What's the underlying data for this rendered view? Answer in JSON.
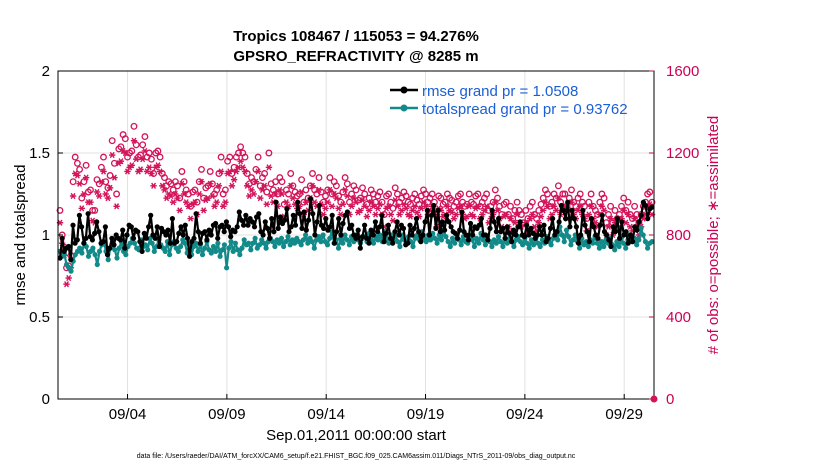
{
  "chart_data": {
    "type": "line",
    "title": "Tropics 108467 / 115053 = 94.276%",
    "subtitle": "GPSRO_REFRACTIVITY @ 8285 m",
    "xlabel": "Sep.01,2011 00:00:00 start",
    "ylabel": "rmse and totalspread",
    "y2label": "# of obs: o=possible; ∗=assimilated",
    "ylim": [
      0,
      2
    ],
    "y2lim": [
      0,
      1600
    ],
    "xlim_days": [
      0.5,
      30.5
    ],
    "yticks": [
      "0",
      "0.5",
      "1",
      "1.5",
      "2"
    ],
    "y2ticks": [
      "0",
      "400",
      "800",
      "1200",
      "1600"
    ],
    "xticks": [
      {
        "day": 4,
        "label": "09/04"
      },
      {
        "day": 9,
        "label": "09/09"
      },
      {
        "day": 14,
        "label": "09/14"
      },
      {
        "day": 19,
        "label": "09/19"
      },
      {
        "day": 24,
        "label": "09/24"
      },
      {
        "day": 29,
        "label": "09/29"
      }
    ],
    "grid": true,
    "legend_position": "top-right",
    "footnote": "data file: /Users/raeder/DAI/ATM_forcXX/CAM6_setup/f.e21.FHIST_BGC.f09_025.CAM6assim.011/Diags_NTrS_2011-09/obs_diag_output.nc",
    "series": [
      {
        "name": "rmse grand pr = 1.0508",
        "color": "#000000",
        "values": [
          0.86,
          0.98,
          0.9,
          0.92,
          0.93,
          0.85,
          1.06,
          0.95,
          0.97,
          1.12,
          1.05,
          0.95,
          0.98,
          1.13,
          0.99,
          0.97,
          1.01,
          1.08,
          1.02,
          0.95,
          0.96,
          1.05,
          0.88,
          0.92,
          0.98,
          0.94,
          1.0,
          0.98,
          0.97,
          1.03,
          0.92,
          1.0,
          1.06,
          1.05,
          0.98,
          1.03,
          1.02,
          0.96,
          0.9,
          1.01,
          0.98,
          1.05,
          1.12,
          1.0,
          0.98,
          1.05,
          0.93,
          1.04,
          1.02,
          1.0,
          1.03,
          0.95,
          1.1,
          0.95,
          0.96,
          1.01,
          1.05,
          1.0,
          1.06,
          0.98,
          0.87,
          0.96,
          0.98,
          1.13,
          1.02,
          0.95,
          1.01,
          1.02,
          0.97,
          1.03,
          1.0,
          1.06,
          1.07,
          0.98,
          1.05,
          1.06,
          1.02,
          1.08,
          1.05,
          0.99,
          1.03,
          1.02,
          1.05,
          1.14,
          1.09,
          1.06,
          1.12,
          1.06,
          1.1,
          1.08,
          1.05,
          1.11,
          1.13,
          1.02,
          1.0,
          1.08,
          1.04,
          0.98,
          1.1,
          1.02,
          1.2,
          1.04,
          1.11,
          1.07,
          1.09,
          1.16,
          1.02,
          1.05,
          1.12,
          1.06,
          1.2,
          1.13,
          1.04,
          1.14,
          1.03,
          1.09,
          1.22,
          1.13,
          1.0,
          1.08,
          1.18,
          1.06,
          1.04,
          1.1,
          1.03,
          1.05,
          1.12,
          0.95,
          1.02,
          1.1,
          1.0,
          1.07,
          1.12,
          1.14,
          1.04,
          1.06,
          1.0,
          0.98,
          1.03,
          0.92,
          0.99,
          1.06,
          0.98,
          0.95,
          1.03,
          1.0,
          1.08,
          1.02,
          1.05,
          1.12,
          0.96,
          1.01,
          1.06,
          0.98,
          0.95,
          1.02,
          1.08,
          1.0,
          1.06,
          1.04,
          0.94,
          0.95,
          1.06,
          1.0,
          1.04,
          1.1,
          1.02,
          0.96,
          1.0,
          1.08,
          1.15,
          1.0,
          1.12,
          1.18,
          1.04,
          1.15,
          1.02,
          1.08,
          1.03,
          1.12,
          1.08,
          1.05,
          1.02,
          1.01,
          0.98,
          1.03,
          1.14,
          1.02,
          1.0,
          0.97,
          1.07,
          1.0,
          1.05,
          1.04,
          1.06,
          1.1,
          1.0,
          1.0,
          0.97,
          1.04,
          1.15,
          1.08,
          1.02,
          1.1,
          1.02,
          1.04,
          0.98,
          1.05,
          1.01,
          0.96,
          1.03,
          1.0,
          1.05,
          1.08,
          1.0,
          0.99,
          1.06,
          1.0,
          1.04,
          1.01,
          0.98,
          1.0,
          1.05,
          1.0,
          1.06,
          0.96,
          0.98,
          1.04,
          1.1,
          1.0,
          1.02,
          1.08,
          1.18,
          1.15,
          1.1,
          1.2,
          1.05,
          1.15,
          1.1,
          1.05,
          0.95,
          1.0,
          1.15,
          1.06,
          1.02,
          0.96,
          1.1,
          1.05,
          1.0,
          0.98,
          1.06,
          1.12,
          1.02,
          1.0,
          0.97,
          0.93,
          1.05,
          1.02,
          1.1,
          0.98,
          1.08,
          1.0,
          1.02,
          0.95,
          1.0,
          0.96,
          1.05,
          1.03,
          1.08,
          1.12,
          1.2,
          1.18,
          1.1,
          1.16,
          1.17
        ]
      },
      {
        "name": "totalspread grand pr = 0.93762",
        "color": "#138a8a",
        "values": [
          0.9,
          0.87,
          0.88,
          0.82,
          0.8,
          0.78,
          0.84,
          0.88,
          0.9,
          0.92,
          0.89,
          0.95,
          0.93,
          0.87,
          0.9,
          0.92,
          0.88,
          0.82,
          0.9,
          0.94,
          0.96,
          0.9,
          0.85,
          0.92,
          0.95,
          0.91,
          0.86,
          0.92,
          0.96,
          0.9,
          0.88,
          0.93,
          0.95,
          0.98,
          0.95,
          0.92,
          0.91,
          0.97,
          0.93,
          0.94,
          0.91,
          0.98,
          0.95,
          0.9,
          0.93,
          0.97,
          0.94,
          0.92,
          0.9,
          0.96,
          0.88,
          0.94,
          0.96,
          0.92,
          0.9,
          0.93,
          0.97,
          0.95,
          0.89,
          0.94,
          0.88,
          0.93,
          0.95,
          0.9,
          0.94,
          0.88,
          0.92,
          0.96,
          0.91,
          0.89,
          0.93,
          0.9,
          0.95,
          0.87,
          0.91,
          0.94,
          0.8,
          0.92,
          0.96,
          0.9,
          0.95,
          0.91,
          0.88,
          0.92,
          0.97,
          0.94,
          0.95,
          0.91,
          0.95,
          0.98,
          0.92,
          0.94,
          0.97,
          0.95,
          0.92,
          0.96,
          0.98,
          0.96,
          0.93,
          0.97,
          0.95,
          0.98,
          0.93,
          0.96,
          0.99,
          0.94,
          0.97,
          0.95,
          0.98,
          0.96,
          0.94,
          0.97,
          1.0,
          0.95,
          0.98,
          0.96,
          0.92,
          0.97,
          0.99,
          0.96,
          1.0,
          0.96,
          0.94,
          0.98,
          1.02,
          0.95,
          0.97,
          0.92,
          0.98,
          0.95,
          1.0,
          0.97,
          0.94,
          0.99,
          0.96,
          1.0,
          0.97,
          0.95,
          0.98,
          0.99,
          0.96,
          1.01,
          0.97,
          0.95,
          0.99,
          0.97,
          1.0,
          0.96,
          1.02,
          0.98,
          0.95,
          1.0,
          0.97,
          1.0,
          0.96,
          0.93,
          1.0,
          0.97,
          0.95,
          0.99,
          0.96,
          0.93,
          0.98,
          1.0,
          0.97,
          1.02,
          0.98,
          0.96,
          1.0,
          0.97,
          1.01,
          0.98,
          0.95,
          1.0,
          0.97,
          1.03,
          0.99,
          0.96,
          0.93,
          0.98,
          0.95,
          1.0,
          0.97,
          0.94,
          0.99,
          0.96,
          0.95,
          1.0,
          0.97,
          0.93,
          0.98,
          0.95,
          1.01,
          0.97,
          0.94,
          0.99,
          0.96,
          0.93,
          0.97,
          0.95,
          0.99,
          0.96,
          0.93,
          0.98,
          0.95,
          0.98,
          0.96,
          0.93,
          0.97,
          0.99,
          0.96,
          0.94,
          0.98,
          0.95,
          0.92,
          0.97,
          0.94,
          0.98,
          0.95,
          0.93,
          0.97,
          0.95,
          0.99,
          0.96,
          0.94,
          0.98,
          1.02,
          0.97,
          1.05,
          1.0,
          0.96,
          1.03,
          0.99,
          0.94,
          0.97,
          1.0,
          0.96,
          0.92,
          0.98,
          0.94,
          0.96,
          0.93,
          0.97,
          0.95,
          0.99,
          0.95,
          0.92,
          0.96,
          0.93,
          0.97,
          0.95,
          0.98,
          0.94,
          0.91,
          0.96,
          0.93,
          0.98,
          0.95,
          0.92,
          0.97,
          1.0,
          0.96,
          0.98,
          0.94,
          0.97,
          1.04,
          1.0,
          0.96,
          0.92,
          0.95,
          0.96
        ]
      },
      {
        "name": "possible obs (o)",
        "axis": "right",
        "color": "#d4145a",
        "values": [
          920,
          800,
          740,
          640,
          650,
          700,
          1060,
          1180,
          1150,
          1120,
          980,
          1060,
          1140,
          1010,
          1020,
          920,
          920,
          1070,
          1050,
          1130,
          1180,
          1060,
          1030,
          1090,
          1260,
          1150,
          1000,
          1220,
          1230,
          1290,
          1270,
          1180,
          1200,
          1210,
          1330,
          1240,
          1180,
          1190,
          1240,
          1280,
          1180,
          1200,
          1170,
          1100,
          1200,
          1210,
          1180,
          1100,
          1080,
          1040,
          1060,
          1050,
          1020,
          1060,
          1040,
          980,
          1110,
          1060,
          1020,
          1000,
          940,
          1010,
          1020,
          960,
          1060,
          1120,
          980,
          1030,
          1040,
          1110,
          1050,
          1000,
          1020,
          1100,
          1180,
          1000,
          1020,
          1160,
          1180,
          1100,
          1130,
          1180,
          1200,
          1230,
          1200,
          1180,
          1100,
          1050,
          1080,
          1060,
          1120,
          1180,
          1040,
          1080,
          1100,
          1010,
          1200,
          1050,
          1020,
          1060,
          1000,
          1080,
          1060,
          950,
          1020,
          1000,
          1100,
          1040,
          1010,
          990,
          1000,
          1070,
          960,
          1020,
          980,
          1040,
          1100,
          1020,
          1000,
          1080,
          1010,
          960,
          990,
          1020,
          1080,
          1000,
          1060,
          1040,
          990,
          960,
          1010,
          1080,
          1050,
          960,
          1000,
          1040,
          1020,
          970,
          980,
          1030,
          1000,
          950,
          980,
          1020,
          1000,
          960,
          990,
          1010,
          960,
          900,
          990,
          1000,
          960,
          930,
          1030,
          1000,
          960,
          980,
          1010,
          990,
          960,
          950,
          980,
          1000,
          970,
          950,
          990,
          1020,
          1000,
          960,
          980,
          1000,
          960,
          900,
          990,
          980,
          950,
          960,
          1000,
          980,
          970,
          940,
          960,
          990,
          1000,
          960,
          940,
          950,
          1000,
          960,
          950,
          990,
          1000,
          940,
          960,
          980,
          1000,
          920,
          940,
          960,
          1020,
          980,
          940,
          900,
          950,
          960,
          900,
          940,
          880,
          920,
          960,
          920,
          900,
          860,
          920,
          880,
          940,
          960,
          900,
          880,
          920,
          950,
          980,
          1020,
          1000,
          940,
          960,
          1000,
          980,
          1040,
          960,
          1000,
          1000,
          940,
          980,
          1020,
          960,
          940,
          980,
          1000,
          960,
          940,
          880,
          960,
          1000,
          940,
          920,
          900,
          960,
          1000,
          980,
          860,
          900,
          940,
          860,
          920,
          880,
          900,
          940,
          980,
          920,
          960,
          900,
          880,
          940,
          900,
          860,
          900,
          940,
          960,
          1000,
          1010,
          960
        ]
      },
      {
        "name": "assimilated obs (∗)",
        "axis": "right",
        "color": "#d4145a",
        "values": [
          860,
          760,
          700,
          560,
          590,
          640,
          990,
          1100,
          1090,
          1050,
          930,
          1000,
          1080,
          960,
          960,
          870,
          860,
          1010,
          990,
          1060,
          1110,
          1000,
          980,
          1030,
          1190,
          1080,
          940,
          1150,
          1160,
          1210,
          1200,
          1110,
          1130,
          1140,
          1260,
          1170,
          1110,
          1120,
          1170,
          1210,
          1110,
          1130,
          1100,
          1040,
          1130,
          1140,
          1110,
          1040,
          1020,
          980,
          1000,
          990,
          960,
          1000,
          980,
          920,
          1050,
          1000,
          960,
          940,
          880,
          950,
          960,
          900,
          1000,
          1060,
          920,
          970,
          980,
          1050,
          990,
          940,
          960,
          1040,
          1110,
          940,
          960,
          1100,
          1110,
          1040,
          1070,
          1110,
          1130,
          1160,
          1130,
          1110,
          1040,
          990,
          1020,
          1000,
          1060,
          1110,
          980,
          1020,
          1040,
          950,
          1130,
          990,
          960,
          1000,
          940,
          1020,
          1000,
          890,
          960,
          940,
          1040,
          980,
          950,
          930,
          940,
          1010,
          900,
          960,
          920,
          980,
          1040,
          960,
          940,
          1020,
          950,
          900,
          930,
          960,
          1020,
          940,
          1000,
          980,
          930,
          900,
          950,
          1020,
          990,
          900,
          940,
          980,
          960,
          910,
          920,
          970,
          940,
          890,
          920,
          960,
          940,
          900,
          930,
          950,
          900,
          840,
          930,
          940,
          900,
          870,
          970,
          940,
          900,
          920,
          950,
          930,
          900,
          890,
          920,
          940,
          910,
          890,
          930,
          960,
          940,
          900,
          920,
          940,
          900,
          840,
          930,
          920,
          890,
          900,
          940,
          920,
          910,
          880,
          900,
          930,
          940,
          900,
          880,
          890,
          940,
          900,
          890,
          930,
          940,
          880,
          900,
          920,
          940,
          860,
          880,
          900,
          960,
          920,
          880,
          840,
          890,
          900,
          840,
          880,
          820,
          860,
          900,
          860,
          840,
          800,
          860,
          820,
          880,
          900,
          840,
          820,
          860,
          890,
          920,
          960,
          940,
          880,
          900,
          940,
          920,
          980,
          900,
          940,
          940,
          880,
          920,
          960,
          900,
          880,
          920,
          940,
          900,
          880,
          820,
          900,
          940,
          880,
          860,
          840,
          900,
          940,
          920,
          800,
          840,
          880,
          800,
          860,
          820,
          840,
          880,
          920,
          860,
          900,
          840,
          820,
          880,
          840,
          800,
          840,
          880,
          900,
          940,
          950,
          900
        ]
      }
    ]
  }
}
